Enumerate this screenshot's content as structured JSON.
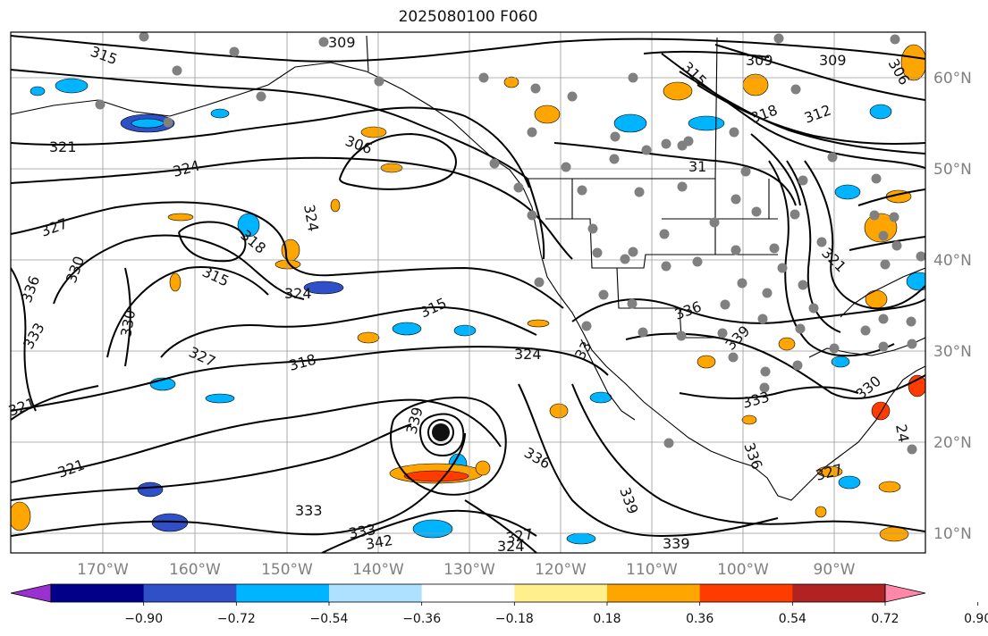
{
  "title": "2025080100 F060",
  "lon_ticks": [
    "170°W",
    "160°W",
    "150°W",
    "140°W",
    "130°W",
    "120°W",
    "110°W",
    "100°W",
    "90°W"
  ],
  "lat_ticks": [
    "60°N",
    "50°N",
    "40°N",
    "30°N",
    "20°N",
    "10°N"
  ],
  "colorbar": {
    "colors": [
      "#9b30d0",
      "#00008b",
      "#3050c8",
      "#00b4ff",
      "#aee0ff",
      "#ffffff",
      "#fff08c",
      "#ffa500",
      "#ff3c00",
      "#b22222",
      "#ff88aa"
    ],
    "labels": [
      "−0.90",
      "−0.72",
      "−0.54",
      "−0.36",
      "−0.18",
      "0.18",
      "0.36",
      "0.54",
      "0.72",
      "0.90"
    ]
  },
  "contour_labels": [
    "315",
    "309",
    "309",
    "309",
    "306",
    "315",
    "318",
    "312",
    "306",
    "321",
    "324",
    "327",
    "324",
    "318",
    "315",
    "324",
    "330",
    "336",
    "333",
    "330",
    "327",
    "318",
    "315",
    "324",
    "321",
    "321",
    "339",
    "336",
    "333",
    "339",
    "333",
    "342",
    "327",
    "324",
    "336",
    "339",
    "336",
    "333",
    "330",
    "327",
    "339",
    "321",
    "33",
    "31",
    "24"
  ]
}
